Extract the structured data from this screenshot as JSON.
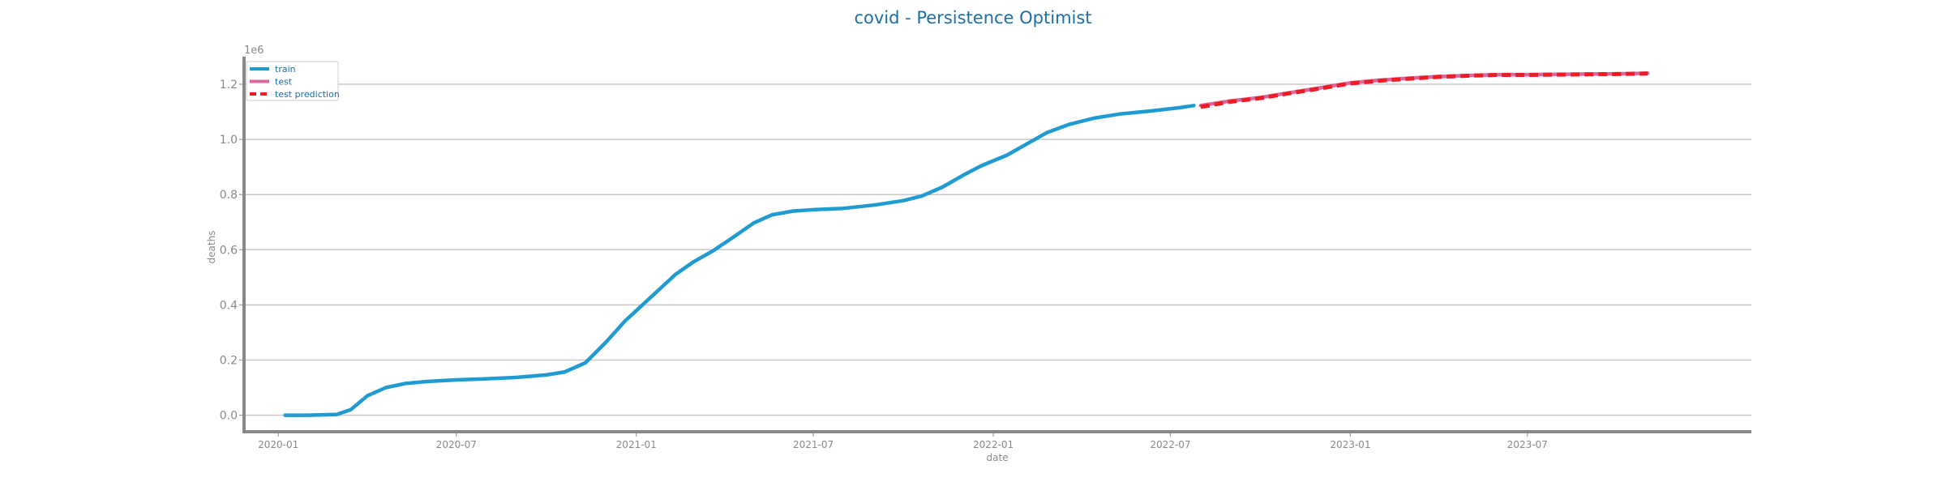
{
  "chart_data": {
    "type": "line",
    "title": "covid - Persistence Optimist",
    "xlabel": "date",
    "ylabel": "deaths",
    "y_multiplier_label": "1e6",
    "xlim": [
      "2019-11-27",
      "2024-02-15"
    ],
    "ylim": [
      -0.06,
      1.3
    ],
    "x_ticks": [
      "2020-01",
      "2020-07",
      "2021-01",
      "2021-07",
      "2022-01",
      "2022-07",
      "2023-01",
      "2023-07"
    ],
    "y_ticks": [
      "0.0",
      "0.2",
      "0.4",
      "0.6",
      "0.8",
      "1.0",
      "1.2"
    ],
    "grid": "horizontal",
    "legend": "top-left",
    "colors": {
      "train": "#1f9bd1",
      "test": "#d9679c",
      "test_prediction": "#ee1c25"
    },
    "series": [
      {
        "name": "train",
        "style": "solid",
        "points": [
          [
            "2020-01-08",
            0.0
          ],
          [
            "2020-02-01",
            0.0
          ],
          [
            "2020-03-01",
            0.003
          ],
          [
            "2020-03-15",
            0.02
          ],
          [
            "2020-04-01",
            0.07
          ],
          [
            "2020-04-20",
            0.1
          ],
          [
            "2020-05-10",
            0.115
          ],
          [
            "2020-06-01",
            0.122
          ],
          [
            "2020-07-01",
            0.128
          ],
          [
            "2020-08-01",
            0.132
          ],
          [
            "2020-09-01",
            0.137
          ],
          [
            "2020-10-01",
            0.146
          ],
          [
            "2020-10-20",
            0.157
          ],
          [
            "2020-11-10",
            0.19
          ],
          [
            "2020-12-01",
            0.265
          ],
          [
            "2020-12-20",
            0.34
          ],
          [
            "2021-01-15",
            0.425
          ],
          [
            "2021-02-10",
            0.51
          ],
          [
            "2021-03-01",
            0.557
          ],
          [
            "2021-03-20",
            0.595
          ],
          [
            "2021-04-10",
            0.645
          ],
          [
            "2021-05-01",
            0.697
          ],
          [
            "2021-05-20",
            0.727
          ],
          [
            "2021-06-10",
            0.74
          ],
          [
            "2021-07-01",
            0.745
          ],
          [
            "2021-08-01",
            0.75
          ],
          [
            "2021-09-01",
            0.762
          ],
          [
            "2021-10-01",
            0.778
          ],
          [
            "2021-10-20",
            0.795
          ],
          [
            "2021-11-10",
            0.827
          ],
          [
            "2021-12-01",
            0.87
          ],
          [
            "2021-12-20",
            0.905
          ],
          [
            "2022-01-15",
            0.943
          ],
          [
            "2022-02-05",
            0.985
          ],
          [
            "2022-02-25",
            1.025
          ],
          [
            "2022-03-20",
            1.055
          ],
          [
            "2022-04-15",
            1.078
          ],
          [
            "2022-05-10",
            1.092
          ],
          [
            "2022-06-10",
            1.103
          ],
          [
            "2022-07-10",
            1.115
          ],
          [
            "2022-07-25",
            1.123
          ]
        ]
      },
      {
        "name": "test",
        "style": "solid",
        "points": [
          [
            "2022-08-01",
            1.123
          ],
          [
            "2022-09-01",
            1.14
          ],
          [
            "2022-10-01",
            1.152
          ],
          [
            "2022-11-01",
            1.17
          ],
          [
            "2022-12-01",
            1.187
          ],
          [
            "2023-01-01",
            1.205
          ],
          [
            "2023-02-01",
            1.215
          ],
          [
            "2023-03-01",
            1.222
          ],
          [
            "2023-04-01",
            1.228
          ],
          [
            "2023-05-01",
            1.232
          ],
          [
            "2023-06-01",
            1.235
          ],
          [
            "2023-07-01",
            1.235
          ],
          [
            "2023-08-01",
            1.236
          ],
          [
            "2023-09-01",
            1.237
          ],
          [
            "2023-10-01",
            1.238
          ],
          [
            "2023-11-01",
            1.24
          ]
        ]
      },
      {
        "name": "test prediction",
        "style": "dashed",
        "points": [
          [
            "2022-08-01",
            1.118
          ],
          [
            "2022-09-01",
            1.137
          ],
          [
            "2022-10-01",
            1.15
          ],
          [
            "2022-11-01",
            1.168
          ],
          [
            "2022-12-01",
            1.185
          ],
          [
            "2023-01-01",
            1.203
          ],
          [
            "2023-02-01",
            1.213
          ],
          [
            "2023-03-01",
            1.22
          ],
          [
            "2023-04-01",
            1.227
          ],
          [
            "2023-05-01",
            1.231
          ],
          [
            "2023-06-01",
            1.234
          ],
          [
            "2023-07-01",
            1.234
          ],
          [
            "2023-08-01",
            1.235
          ],
          [
            "2023-09-01",
            1.236
          ],
          [
            "2023-10-01",
            1.237
          ],
          [
            "2023-11-01",
            1.239
          ]
        ]
      }
    ]
  }
}
